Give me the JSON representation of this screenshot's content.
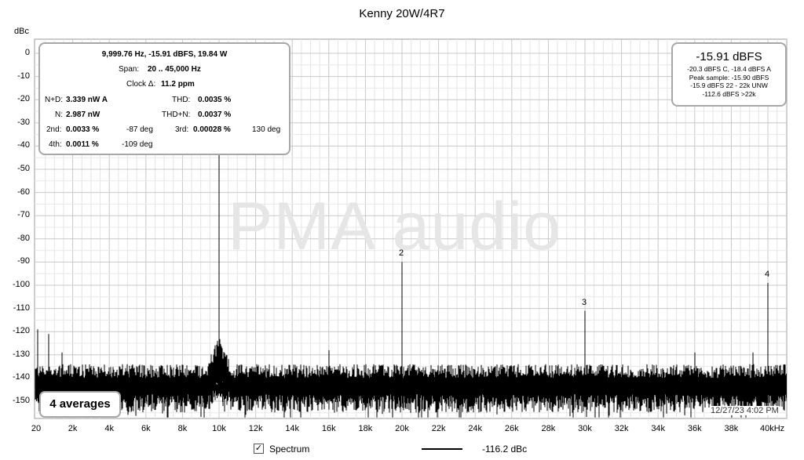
{
  "chart_data": {
    "type": "line",
    "title": "Kenny 20W/4R7",
    "ylabel": "dBc",
    "ylim": [
      -160,
      5
    ],
    "xlim": [
      0,
      41000
    ],
    "y_ticks": [
      "0",
      "-10",
      "-20",
      "-30",
      "-40",
      "-50",
      "-60",
      "-70",
      "-80",
      "-90",
      "-100",
      "-110",
      "-120",
      "-130",
      "-140",
      "-150"
    ],
    "x_ticks": [
      "20",
      "2k",
      "4k",
      "6k",
      "8k",
      "10k",
      "12k",
      "14k",
      "16k",
      "18k",
      "20k",
      "22k",
      "24k",
      "26k",
      "28k",
      "30k",
      "32k",
      "34k",
      "36k",
      "38k",
      "40kHz"
    ],
    "grid": true,
    "series": [
      {
        "name": "Spectrum",
        "noise_floor_dbc": -143,
        "peaks": [
          {
            "x": 10000,
            "y": 0
          },
          {
            "x": 20000,
            "y": -90
          },
          {
            "x": 30000,
            "y": -111
          },
          {
            "x": 40000,
            "y": -99
          },
          {
            "x": 16000,
            "y": -128
          },
          {
            "x": 36000,
            "y": -129
          },
          {
            "x": 39200,
            "y": -129
          },
          {
            "x": 100,
            "y": -119
          },
          {
            "x": 700,
            "y": -121
          },
          {
            "x": 1400,
            "y": -129
          }
        ]
      }
    ],
    "harmonic_labels": [
      {
        "label": "2",
        "x": 20000,
        "y": -90
      },
      {
        "label": "3",
        "x": 30000,
        "y": -111
      },
      {
        "label": "4",
        "x": 40000,
        "y": -99
      }
    ]
  },
  "watermark": "PMA audio",
  "info": {
    "fundamental": "9,999.76 Hz, -15.91 dBFS, 19.84 W",
    "span_label": "Span:",
    "span_value": "20 .. 45,000 Hz",
    "clock_label": "Clock Δ:",
    "clock_value": "11.2 ppm",
    "nd_label": "N+D:",
    "nd_value": "3.339 nW A",
    "thd_label": "THD:",
    "thd_value": "0.0035 %",
    "n_label": "N:",
    "n_value": "2.987 nW",
    "thdn_label": "THD+N:",
    "thdn_value": "0.0037 %",
    "h2_label": "2nd:",
    "h2_value": "0.0033 %",
    "h2_phase": "-87 deg",
    "h3_label": "3rd:",
    "h3_value": "0.00028 %",
    "h3_phase": "130 deg",
    "h4_label": "4th:",
    "h4_value": "0.0011 %",
    "h4_phase": "-109 deg"
  },
  "level": {
    "main": "-15.91 dBFS",
    "line1": "-20.3 dBFS C, -18.4 dBFS A",
    "line2": "Peak sample: -15.90 dBFS",
    "line3": "-15.9 dBFS 22 - 22k UNW",
    "line4": "-112.6 dBFS >22k"
  },
  "averages": "4 averages",
  "timestamp": "12/27/23 4:02 PM",
  "legend": {
    "checked": true,
    "checkmark": "✓",
    "label": "Spectrum",
    "value": "-116.2 dBc"
  }
}
